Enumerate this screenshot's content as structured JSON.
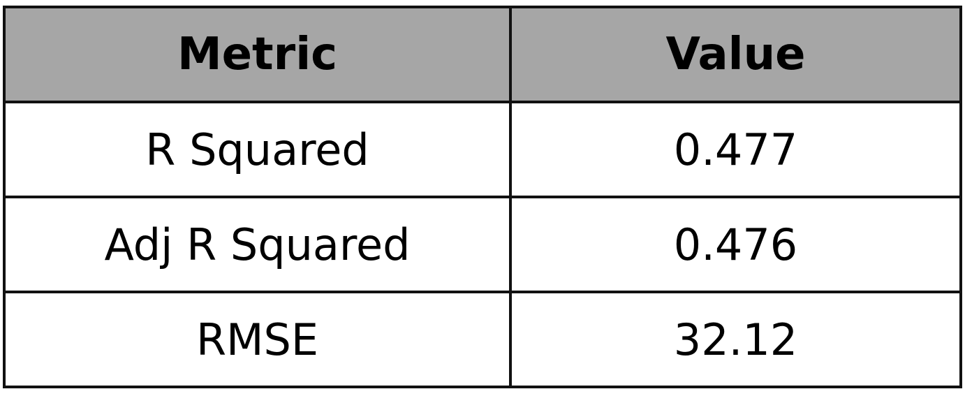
{
  "chart_data": {
    "type": "table",
    "columns": [
      "Metric",
      "Value"
    ],
    "rows": [
      [
        "R Squared",
        "0.477"
      ],
      [
        "Adj R Squared",
        "0.476"
      ],
      [
        "RMSE",
        "32.12"
      ]
    ]
  },
  "colors": {
    "header_background": "#a6a6a6",
    "body_background": "#ffffff",
    "border": "#111111",
    "text": "#000000"
  }
}
